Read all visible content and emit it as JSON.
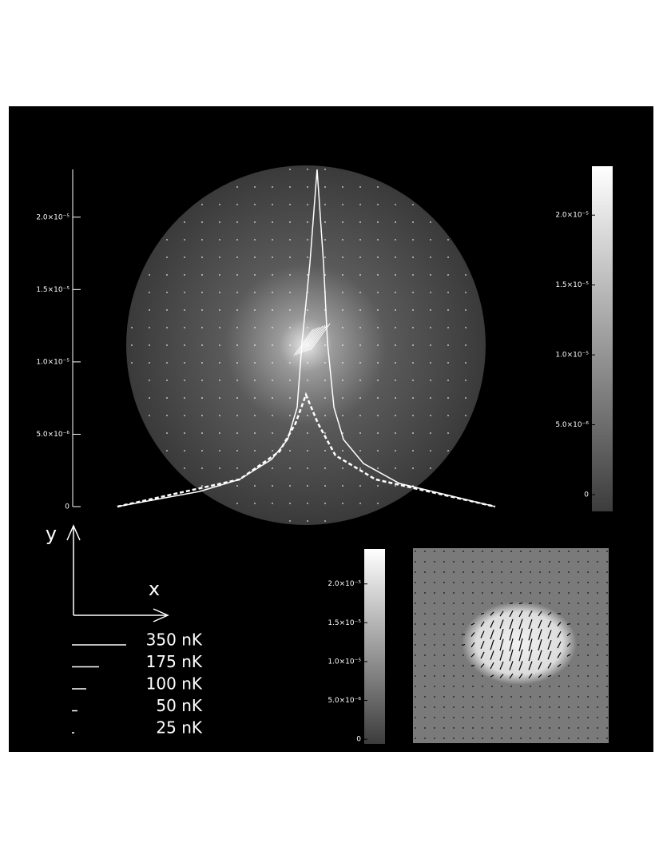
{
  "chart_data": [
    {
      "type": "line",
      "xlim": [
        -1,
        1
      ],
      "ylim": [
        0,
        2.33e-05
      ],
      "yticks": [
        0,
        {
          "value": 5e-06,
          "label": "5.0×10⁻⁶"
        },
        {
          "value": 1e-05,
          "label": "1.0×10⁻⁵"
        },
        {
          "value": 1.5e-05,
          "label": "1.5×10⁻⁵"
        },
        {
          "value": 2e-05,
          "label": "2.0×10⁻⁵"
        }
      ],
      "series": [
        {
          "color": "#ffffff",
          "dash": false,
          "x": [
            -1.049,
            -0.591,
            -0.369,
            -0.191,
            -0.102,
            -0.049,
            -0.022,
            0.022,
            0.062,
            0.098,
            0.12,
            0.156,
            0.209,
            0.32,
            0.52,
            1.053
          ],
          "values": [
            0,
            1.05e-06,
            1.88e-06,
            3.26e-06,
            4.64e-06,
            6.85e-06,
            1.13e-05,
            1.68e-05,
            2.33e-05,
            1.68e-05,
            1.13e-05,
            6.85e-06,
            4.64e-06,
            2.98e-06,
            1.6e-06,
            0
          ]
        },
        {
          "color": "#ffffff",
          "dash": true,
          "x": [
            -1.049,
            -0.369,
            -0.147,
            -0.058,
            0,
            0.067,
            0.164,
            0.387,
            1.053
          ],
          "values": [
            0,
            1.88e-06,
            3.81e-06,
            5.75e-06,
            7.73e-06,
            5.75e-06,
            3.54e-06,
            1.88e-06,
            0
          ]
        }
      ]
    },
    {
      "type": "colorbar",
      "ylim": [
        -1.2e-06,
        2.35e-05
      ],
      "yticks": [
        0,
        {
          "value": 5e-06,
          "label": "5.0×10⁻⁶"
        },
        {
          "value": 1e-05,
          "label": "1.0×10⁻⁵"
        },
        {
          "value": 1.5e-05,
          "label": "1.5×10⁻⁵"
        },
        {
          "value": 2e-05,
          "label": "2.0×10⁻⁵"
        }
      ]
    },
    {
      "type": "colorbar",
      "ylim": [
        -6e-07,
        2.45e-05
      ],
      "yticks": [
        0,
        {
          "value": 5e-06,
          "label": "5.0×10⁻⁶"
        },
        {
          "value": 1e-05,
          "label": "1.0×10⁻⁵"
        },
        {
          "value": 1.5e-05,
          "label": "1.5×10⁻⁵"
        },
        {
          "value": 2e-05,
          "label": "2.0×10⁻⁵"
        }
      ]
    }
  ],
  "axes_diagram": {
    "x_label": "x",
    "y_label": "y"
  },
  "legend": {
    "items": [
      "350 nK",
      "175 nK",
      "100 nK",
      "50 nK",
      "25 nK"
    ]
  }
}
